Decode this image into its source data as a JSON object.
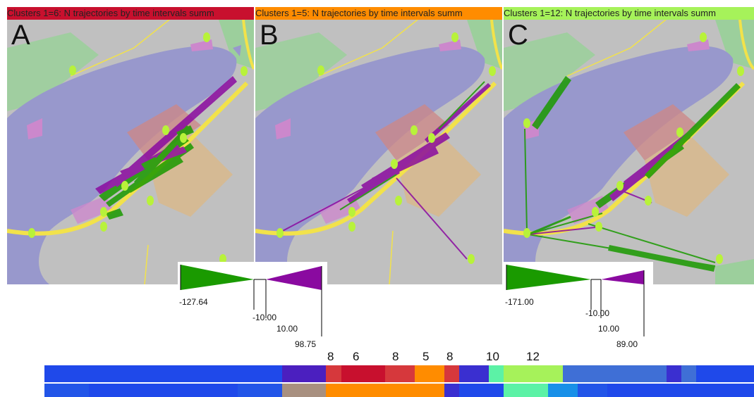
{
  "panels": [
    {
      "letter": "A",
      "title": "Clusters 1=6: N trajectories by time intervals summ",
      "title_color": "#c8102e"
    },
    {
      "letter": "B",
      "title": "Clusters 1=5: N trajectories by time intervals summ",
      "title_color": "#ff8c00"
    },
    {
      "letter": "C",
      "title": "Clusters 1=12: N trajectories by time intervals summ",
      "title_color": "#a6f25a"
    }
  ],
  "legend_left": {
    "min": "-127.64",
    "neg_threshold": "-10.00",
    "pos_threshold": "10.00",
    "max": "98.75",
    "neg_color": "#1a9a00",
    "pos_color": "#8a0aa0"
  },
  "legend_right": {
    "min": "-171.00",
    "neg_threshold": "-10.00",
    "pos_threshold": "10.00",
    "max": "89.00",
    "neg_color": "#1a9a00",
    "pos_color": "#8a0aa0"
  },
  "timeline": {
    "labels": [
      "8",
      "6",
      "8",
      "5",
      "8",
      "10",
      "12"
    ],
    "row1": [
      {
        "w": 337,
        "c": "#1f49ea"
      },
      {
        "w": 62,
        "c": "#4b1fbf"
      },
      {
        "w": 22,
        "c": "#d6383c"
      },
      {
        "w": 62,
        "c": "#c8102e"
      },
      {
        "w": 42,
        "c": "#d6383c"
      },
      {
        "w": 42,
        "c": "#ff8c00"
      },
      {
        "w": 21,
        "c": "#d6383c"
      },
      {
        "w": 42,
        "c": "#3a2fd0"
      },
      {
        "w": 21,
        "c": "#5cf2a6"
      },
      {
        "w": 84,
        "c": "#a6f25a"
      },
      {
        "w": 147,
        "c": "#3f6fd6"
      },
      {
        "w": 21,
        "c": "#3a2fd0"
      },
      {
        "w": 21,
        "c": "#3f6fd6"
      },
      {
        "w": 82,
        "c": "#1f49ea"
      }
    ],
    "row2": [
      {
        "w": 63,
        "c": "#2255e8"
      },
      {
        "w": 211,
        "c": "#1f49ea"
      },
      {
        "w": 63,
        "c": "#2255e8"
      },
      {
        "w": 62,
        "c": "#a89080"
      },
      {
        "w": 168,
        "c": "#ff8c00"
      },
      {
        "w": 21,
        "c": "#3a2fd0"
      },
      {
        "w": 63,
        "c": "#1f49ea"
      },
      {
        "w": 63,
        "c": "#5cf2a6"
      },
      {
        "w": 42,
        "c": "#1890e8"
      },
      {
        "w": 42,
        "c": "#2255e8"
      },
      {
        "w": 208,
        "c": "#1f49ea"
      }
    ]
  }
}
